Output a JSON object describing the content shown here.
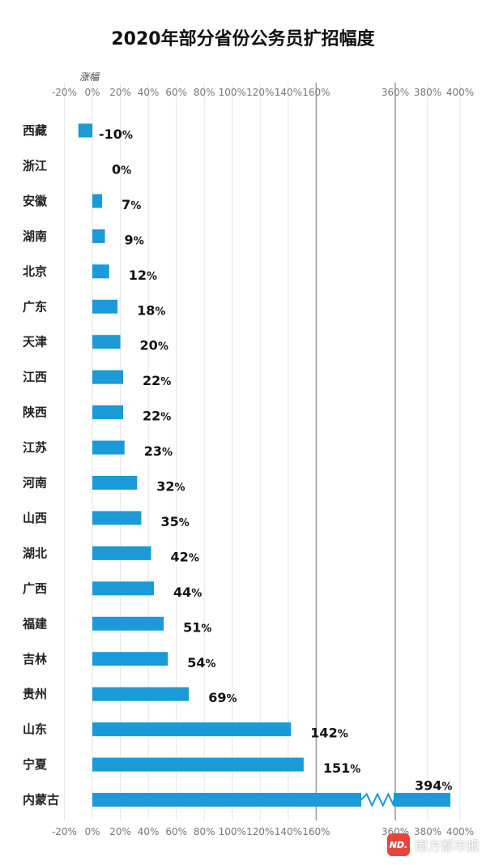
{
  "chart_data": {
    "type": "bar",
    "orientation": "horizontal",
    "title": "2020年部分省份公务员扩招幅度",
    "xlabel": "涨幅",
    "ylabel": "",
    "axis_break": {
      "from": 160,
      "to": 360
    },
    "x_ticks": [
      "-20%",
      "0%",
      "20%",
      "40%",
      "60%",
      "80%",
      "100%",
      "120%",
      "140%",
      "160%",
      "360%",
      "380%",
      "400%"
    ],
    "grid": true,
    "bar_color": "#1a9ad6",
    "categories": [
      "西藏",
      "浙江",
      "安徽",
      "湖南",
      "北京",
      "广东",
      "天津",
      "江西",
      "陕西",
      "江苏",
      "河南",
      "山西",
      "湖北",
      "广西",
      "福建",
      "吉林",
      "贵州",
      "山东",
      "宁夏",
      "内蒙古"
    ],
    "values": [
      -10,
      0,
      7,
      9,
      12,
      18,
      20,
      22,
      22,
      23,
      32,
      35,
      42,
      44,
      51,
      54,
      69,
      142,
      151,
      394
    ],
    "value_labels": [
      "-10",
      "0",
      "7",
      "9",
      "12",
      "18",
      "20",
      "22",
      "22",
      "23",
      "32",
      "35",
      "42",
      "44",
      "51",
      "54",
      "69",
      "142",
      "151",
      "394"
    ],
    "value_suffix": "%"
  },
  "watermark": {
    "logo_text": "ND.",
    "text": "南方都市报"
  }
}
